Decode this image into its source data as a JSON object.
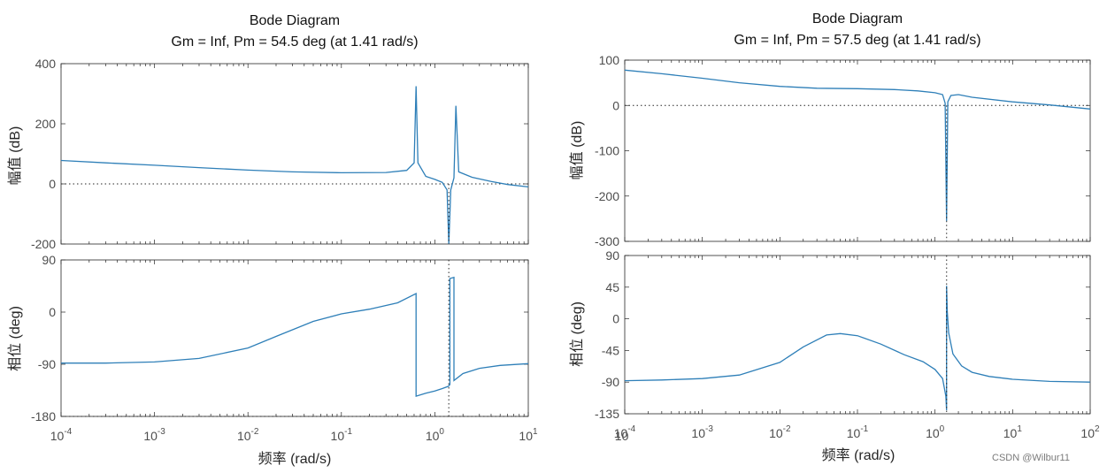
{
  "chart_data": [
    {
      "type": "line",
      "title": "Bode Diagram",
      "subtitle": "Gm = Inf,  Pm = 54.5 deg (at 1.41 rad/s)",
      "xlabel": "频率  (rad/s)",
      "xscale": "log",
      "xlim": [
        0.0001,
        10
      ],
      "x_ticks": [
        {
          "base": "10",
          "exp": "-4"
        },
        {
          "base": "10",
          "exp": "-3"
        },
        {
          "base": "10",
          "exp": "-2"
        },
        {
          "base": "10",
          "exp": "-1"
        },
        {
          "base": "10",
          "exp": "0"
        },
        {
          "base": "10",
          "exp": "1"
        },
        {
          "base": "10",
          "exp": ""
        }
      ],
      "magnitude": {
        "ylabel": "幅值 (dB)",
        "ylim": [
          -200,
          400
        ],
        "yticks": [
          "400",
          "200",
          "0",
          "-200"
        ],
        "x": [
          0.0001,
          0.0003,
          0.001,
          0.003,
          0.01,
          0.03,
          0.1,
          0.3,
          0.5,
          0.6,
          0.63,
          0.66,
          0.8,
          1.0,
          1.2,
          1.35,
          1.41,
          1.48,
          1.6,
          1.68,
          1.8,
          2.5,
          4,
          6,
          10
        ],
        "y": [
          78,
          70,
          62,
          54,
          46,
          40,
          37,
          38,
          45,
          70,
          325,
          70,
          25,
          15,
          5,
          -20,
          -200,
          -20,
          20,
          260,
          40,
          22,
          8,
          -2,
          -10
        ]
      },
      "phase": {
        "ylabel": "相位 (deg)",
        "ylim": [
          -180,
          90
        ],
        "yticks": [
          "90",
          "0",
          "-90",
          "-180"
        ],
        "x": [
          0.0001,
          0.0003,
          0.001,
          0.003,
          0.01,
          0.02,
          0.05,
          0.1,
          0.2,
          0.4,
          0.63,
          0.63,
          0.8,
          1.0,
          1.2,
          1.4,
          1.45,
          1.45,
          1.6,
          1.6,
          2,
          3,
          5,
          10
        ],
        "y": [
          -88,
          -88,
          -86,
          -80,
          -62,
          -42,
          -16,
          -3,
          5,
          16,
          32,
          -145,
          -140,
          -136,
          -132,
          -128,
          -125,
          58,
          60,
          -118,
          -106,
          -97,
          -92,
          -89
        ]
      }
    },
    {
      "type": "line",
      "title": "Bode Diagram",
      "subtitle": "Gm = Inf,  Pm = 57.5 deg (at 1.41 rad/s)",
      "xlabel": "频率  (rad/s)",
      "xscale": "log",
      "xlim": [
        0.0001,
        100
      ],
      "x_ticks": [
        {
          "base": "10",
          "exp": "-4"
        },
        {
          "base": "10",
          "exp": "-3"
        },
        {
          "base": "10",
          "exp": "-2"
        },
        {
          "base": "10",
          "exp": "-1"
        },
        {
          "base": "10",
          "exp": "0"
        },
        {
          "base": "10",
          "exp": "1"
        },
        {
          "base": "10",
          "exp": "2"
        }
      ],
      "magnitude": {
        "ylabel": "幅值 (dB)",
        "ylim": [
          -300,
          100
        ],
        "yticks": [
          "100",
          "0",
          "-100",
          "-200",
          "-300"
        ],
        "x": [
          0.0001,
          0.0003,
          0.001,
          0.003,
          0.01,
          0.03,
          0.1,
          0.3,
          0.6,
          1.0,
          1.25,
          1.35,
          1.41,
          1.46,
          1.6,
          2.0,
          3,
          10,
          30,
          100
        ],
        "y": [
          78,
          70,
          60,
          50,
          42,
          38,
          37,
          35,
          32,
          28,
          24,
          5,
          -255,
          8,
          22,
          24,
          18,
          8,
          1,
          -8
        ]
      },
      "phase": {
        "ylabel": "相位 (deg)",
        "ylim": [
          -135,
          90
        ],
        "yticks": [
          "90",
          "45",
          "0",
          "-45",
          "-90",
          "-135"
        ],
        "x": [
          0.0001,
          0.0003,
          0.001,
          0.003,
          0.01,
          0.02,
          0.04,
          0.06,
          0.1,
          0.2,
          0.4,
          0.7,
          1.0,
          1.25,
          1.38,
          1.41,
          1.41,
          1.44,
          1.5,
          1.7,
          2.2,
          3,
          5,
          10,
          30,
          100
        ],
        "y": [
          -88,
          -87,
          -85,
          -80,
          -62,
          -40,
          -23,
          -21,
          -24,
          -36,
          -51,
          -61,
          -72,
          -85,
          -110,
          -130,
          47,
          10,
          -20,
          -50,
          -67,
          -76,
          -82,
          -86,
          -89,
          -90
        ]
      }
    }
  ],
  "watermark": "CSDN @Wilbur11",
  "colors": {
    "line": "#2e7fb8",
    "axis": "#262626",
    "tick": "#4d4d4d",
    "zero": "#262626"
  }
}
